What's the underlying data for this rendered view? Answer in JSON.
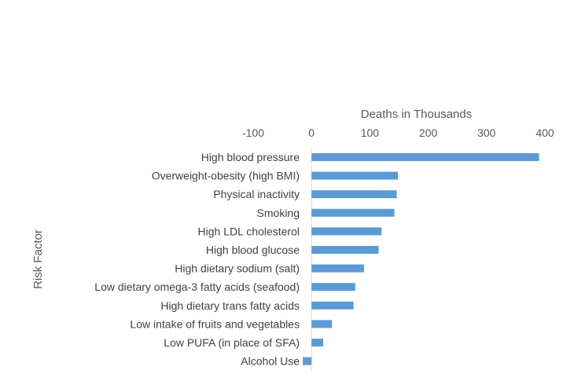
{
  "chart_data": {
    "type": "bar",
    "orientation": "horizontal",
    "xlabel": "Deaths in Thousands",
    "ylabel": "Risk Factor",
    "xlim": [
      -100,
      400
    ],
    "xticks": [
      "-100",
      "0",
      "100",
      "200",
      "300",
      "400"
    ],
    "x_axis_position": "top",
    "grid": false,
    "bar_color": "#5b9bd5",
    "categories": [
      "High blood pressure",
      "Overweight-obesity (high BMI)",
      "Physical inactivity",
      "Smoking",
      "High LDL cholesterol",
      "High blood glucose",
      "High dietary sodium (salt)",
      "Low dietary omega-3 fatty acids (seafood)",
      "High dietary trans fatty acids",
      "Low intake of fruits and vegetables",
      "Low PUFA (in place of SFA)",
      "Alcohol Use"
    ],
    "values": [
      390,
      148,
      146,
      142,
      120,
      115,
      90,
      75,
      72,
      35,
      20,
      -15
    ]
  }
}
